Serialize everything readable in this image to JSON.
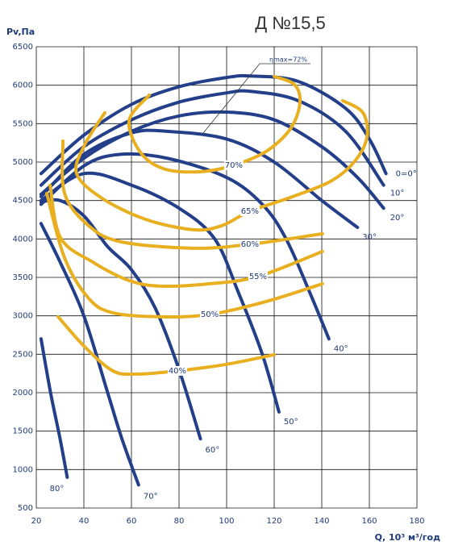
{
  "chart_data": {
    "type": "line",
    "title": "Д №15,5",
    "y_label": "Pv,Па",
    "x_label": "Q, 10³ м³/год",
    "annotation": "ηmax=72%",
    "xlim": [
      20,
      180
    ],
    "ylim": [
      500,
      6500
    ],
    "xticks": [
      20,
      40,
      60,
      80,
      100,
      120,
      140,
      160,
      180
    ],
    "yticks": [
      500,
      1000,
      1500,
      2000,
      2500,
      3000,
      3500,
      4000,
      4500,
      5000,
      5500,
      6000,
      6500
    ],
    "grid": true,
    "series": [
      {
        "name": "0=0°",
        "color": "#233f8a",
        "x": [
          22,
          40,
          60,
          80,
          100,
          110,
          130,
          150,
          160,
          167
        ],
        "values": [
          4850,
          5350,
          5750,
          5980,
          6100,
          6120,
          6050,
          5700,
          5300,
          4850
        ]
      },
      {
        "name": "10°",
        "color": "#233f8a",
        "x": [
          22,
          40,
          60,
          80,
          100,
          110,
          130,
          150,
          166
        ],
        "values": [
          4700,
          5200,
          5550,
          5780,
          5900,
          5920,
          5800,
          5400,
          4700
        ]
      },
      {
        "name": "20°",
        "color": "#233f8a",
        "x": [
          22,
          40,
          60,
          80,
          100,
          120,
          140,
          155,
          166
        ],
        "values": [
          4580,
          5050,
          5400,
          5600,
          5650,
          5550,
          5200,
          4800,
          4400
        ]
      },
      {
        "name": "30°",
        "color": "#233f8a",
        "x": [
          22,
          40,
          60,
          75,
          100,
          120,
          140,
          155
        ],
        "values": [
          4550,
          5100,
          5380,
          5400,
          5300,
          5000,
          4500,
          4150
        ]
      },
      {
        "name": "40°",
        "color": "#233f8a",
        "x": [
          22,
          40,
          55,
          75,
          100,
          115,
          125,
          135,
          143
        ],
        "values": [
          4450,
          4950,
          5100,
          5050,
          4800,
          4450,
          4000,
          3300,
          2700
        ]
      },
      {
        "name": "50°",
        "color": "#233f8a",
        "x": [
          22,
          40,
          60,
          80,
          95,
          105,
          115,
          122
        ],
        "values": [
          4500,
          4850,
          4700,
          4400,
          4000,
          3300,
          2500,
          1750
        ]
      },
      {
        "name": "60°",
        "color": "#233f8a",
        "x": [
          22,
          30,
          40,
          50,
          60,
          70,
          80,
          89
        ],
        "values": [
          4480,
          4500,
          4300,
          3900,
          3600,
          3100,
          2300,
          1400
        ]
      },
      {
        "name": "70°",
        "color": "#233f8a",
        "x": [
          22,
          30,
          40,
          50,
          56,
          63
        ],
        "values": [
          4200,
          3700,
          3000,
          2000,
          1400,
          800
        ]
      },
      {
        "name": "80°",
        "color": "#233f8a",
        "x": [
          22,
          26,
          30,
          33
        ],
        "values": [
          2700,
          2000,
          1400,
          900
        ]
      },
      {
        "name": "70%",
        "color": "#e8b020",
        "x": [
          67.5,
          59,
          64,
          74.2,
          89.5,
          103,
          116.6,
          126.8,
          130.8,
          128.5,
          120
        ],
        "values": [
          5872,
          5537,
          5117,
          4907,
          4876,
          4960,
          5138,
          5432,
          5767,
          6009,
          6114
        ]
      },
      {
        "name": "65%",
        "color": "#e8b020",
        "x": [
          48.8,
          40.3,
          36.9,
          47.1,
          65.8,
          86.1,
          98,
          109.8,
          126.8,
          143.7,
          153.9,
          159,
          157.3,
          148.8
        ],
        "values": [
          5642,
          5222,
          4855,
          4540,
          4257,
          4120,
          4173,
          4361,
          4540,
          4750,
          5012,
          5327,
          5642,
          5799
        ]
      },
      {
        "name": "60%",
        "color": "#e8b020",
        "x": [
          31.2,
          31.9,
          42,
          55.6,
          86.1,
          109.8,
          140.3
        ],
        "values": [
          5274,
          4592,
          4173,
          3963,
          3879,
          3931,
          4068
        ]
      },
      {
        "name": "55%",
        "color": "#e8b020",
        "x": [
          25.8,
          30.2,
          43.7,
          59,
          72.5,
          92.9,
          113.2,
          140.3
        ],
        "values": [
          4697,
          4015,
          3700,
          3459,
          3386,
          3417,
          3512,
          3837
        ]
      },
      {
        "name": "50%",
        "color": "#e8b020",
        "x": [
          24.4,
          31.9,
          42,
          52.2,
          72.5,
          92.9,
          116.6,
          140.3
        ],
        "values": [
          4592,
          3753,
          3228,
          3039,
          2987,
          3018,
          3186,
          3417
        ]
      },
      {
        "name": "40%",
        "color": "#e8b020",
        "x": [
          29.2,
          40.3,
          52.2,
          62.4,
          79.3,
          99.7,
          120
        ],
        "values": [
          2987,
          2599,
          2284,
          2242,
          2284,
          2368,
          2494
        ]
      }
    ]
  }
}
